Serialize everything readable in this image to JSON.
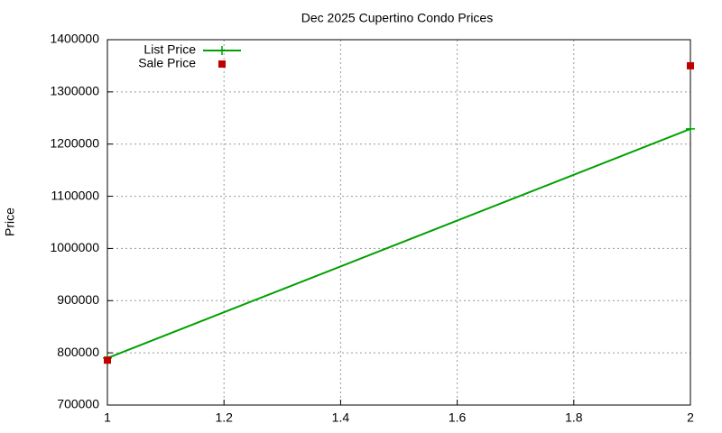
{
  "chart_data": {
    "type": "line",
    "title": "Dec 2025 Cupertino Condo Prices",
    "y_label": "Price",
    "x": [
      1,
      2
    ],
    "series": [
      {
        "name": "List Price",
        "color": "#00a000",
        "style": "linespoints",
        "values": [
          790000,
          1229000
        ]
      },
      {
        "name": "Sale Price",
        "color": "#c00000",
        "style": "points",
        "values": [
          786000,
          1350000
        ]
      }
    ],
    "xlim": [
      1,
      2
    ],
    "xticks": [
      1,
      1.2,
      1.4,
      1.6,
      1.8,
      2
    ],
    "ylim": [
      700000,
      1400000
    ],
    "yticks": [
      700000,
      800000,
      900000,
      1000000,
      1100000,
      1200000,
      1300000,
      1400000
    ],
    "grid": true,
    "legend": "upper-left"
  }
}
